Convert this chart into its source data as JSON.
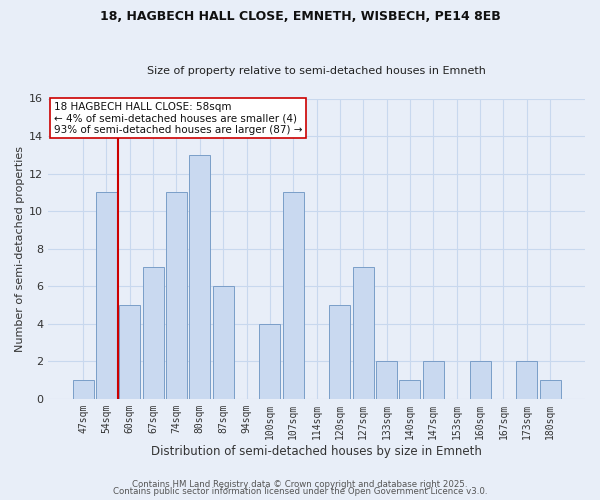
{
  "title": "18, HAGBECH HALL CLOSE, EMNETH, WISBECH, PE14 8EB",
  "subtitle": "Size of property relative to semi-detached houses in Emneth",
  "xlabel": "Distribution of semi-detached houses by size in Emneth",
  "ylabel": "Number of semi-detached properties",
  "bins": [
    "47sqm",
    "54sqm",
    "60sqm",
    "67sqm",
    "74sqm",
    "80sqm",
    "87sqm",
    "94sqm",
    "100sqm",
    "107sqm",
    "114sqm",
    "120sqm",
    "127sqm",
    "133sqm",
    "140sqm",
    "147sqm",
    "153sqm",
    "160sqm",
    "167sqm",
    "173sqm",
    "180sqm"
  ],
  "values": [
    1,
    11,
    5,
    7,
    11,
    13,
    6,
    0,
    4,
    11,
    0,
    5,
    7,
    2,
    1,
    2,
    0,
    2,
    0,
    2,
    1
  ],
  "bar_color": "#c9d9f0",
  "bar_edge_color": "#7a9ec8",
  "grid_color": "#c8d8ee",
  "background_color": "#e8eef8",
  "marker_line_color": "#cc0000",
  "annotation_title": "18 HAGBECH HALL CLOSE: 58sqm",
  "annotation_line1": "← 4% of semi-detached houses are smaller (4)",
  "annotation_line2": "93% of semi-detached houses are larger (87) →",
  "ylim": [
    0,
    16
  ],
  "yticks": [
    0,
    2,
    4,
    6,
    8,
    10,
    12,
    14,
    16
  ],
  "title_fontsize": 9,
  "subtitle_fontsize": 8,
  "footer1": "Contains HM Land Registry data © Crown copyright and database right 2025.",
  "footer2": "Contains public sector information licensed under the Open Government Licence v3.0."
}
